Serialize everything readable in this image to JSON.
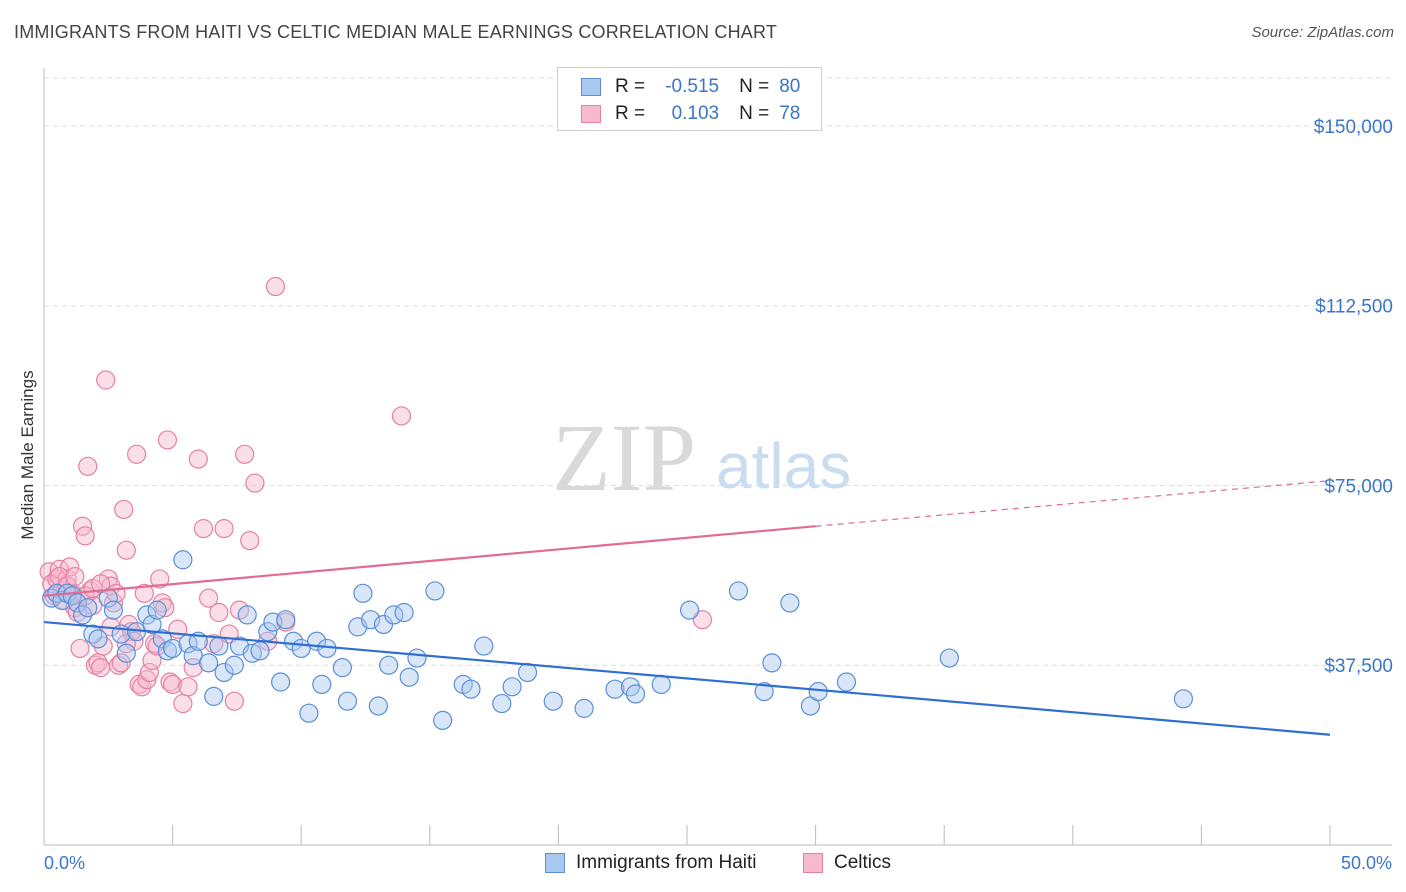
{
  "header": {
    "title": "IMMIGRANTS FROM HAITI VS CELTIC MEDIAN MALE EARNINGS CORRELATION CHART",
    "source": "Source: ZipAtlas.com"
  },
  "watermark": {
    "zip": "ZIP",
    "atlas": "atlas"
  },
  "legend": {
    "series1": {
      "r_label": "R =",
      "r_value": "-0.515",
      "n_label": "N =",
      "n_value": "80"
    },
    "series2": {
      "r_label": "R =",
      "r_value": "0.103",
      "n_label": "N =",
      "n_value": "78"
    }
  },
  "bottom_legend": {
    "series1": "Immigrants from Haiti",
    "series2": "Celtics"
  },
  "colors": {
    "blue_fill": "#a9c8f0",
    "blue_stroke": "#5b8fd6",
    "blue_line": "#2f6fd0",
    "pink_fill": "#f6b9cd",
    "pink_stroke": "#e57fa4",
    "pink_line": "#e06b94",
    "tick_text": "#3a76c8",
    "grid": "#dddddd"
  },
  "chart_data": {
    "type": "scatter",
    "title": "IMMIGRANTS FROM HAITI VS CELTIC MEDIAN MALE EARNINGS CORRELATION CHART",
    "xlabel": "",
    "ylabel": "Median Male Earnings",
    "xlim": [
      0,
      50
    ],
    "ylim": [
      0,
      160000
    ],
    "x_tick_labels": [
      "0.0%",
      "50.0%"
    ],
    "y_ticks": [
      37500,
      75000,
      112500,
      150000
    ],
    "y_tick_labels": [
      "$37,500",
      "$75,000",
      "$112,500",
      "$150,000"
    ],
    "grid": true,
    "series": [
      {
        "name": "Immigrants from Haiti",
        "trend": {
          "x": [
            0,
            50
          ],
          "y": [
            46500,
            23000
          ]
        },
        "points": [
          [
            0.3,
            51500
          ],
          [
            0.5,
            52500
          ],
          [
            0.7,
            51000
          ],
          [
            0.9,
            52500
          ],
          [
            1.1,
            52000
          ],
          [
            1.3,
            50500
          ],
          [
            1.5,
            48000
          ],
          [
            1.7,
            49500
          ],
          [
            1.9,
            44000
          ],
          [
            2.1,
            43000
          ],
          [
            2.5,
            51500
          ],
          [
            2.7,
            49000
          ],
          [
            3.0,
            44000
          ],
          [
            3.2,
            40000
          ],
          [
            3.6,
            44500
          ],
          [
            4.0,
            48000
          ],
          [
            4.2,
            46000
          ],
          [
            4.4,
            49000
          ],
          [
            4.6,
            43000
          ],
          [
            4.8,
            40500
          ],
          [
            5.0,
            41000
          ],
          [
            5.4,
            59500
          ],
          [
            5.6,
            42000
          ],
          [
            5.8,
            39500
          ],
          [
            6.0,
            42500
          ],
          [
            6.4,
            38000
          ],
          [
            6.6,
            31000
          ],
          [
            6.8,
            41500
          ],
          [
            7.0,
            36000
          ],
          [
            7.4,
            37500
          ],
          [
            7.6,
            41500
          ],
          [
            7.9,
            48000
          ],
          [
            8.1,
            40000
          ],
          [
            8.4,
            40500
          ],
          [
            8.7,
            44500
          ],
          [
            8.9,
            46500
          ],
          [
            9.2,
            34000
          ],
          [
            9.4,
            47000
          ],
          [
            9.7,
            42500
          ],
          [
            10.0,
            41000
          ],
          [
            10.3,
            27500
          ],
          [
            10.6,
            42500
          ],
          [
            10.8,
            33500
          ],
          [
            11.0,
            41000
          ],
          [
            11.6,
            37000
          ],
          [
            11.8,
            30000
          ],
          [
            12.2,
            45500
          ],
          [
            12.4,
            52500
          ],
          [
            12.7,
            47000
          ],
          [
            13.0,
            29000
          ],
          [
            13.2,
            46000
          ],
          [
            13.4,
            37500
          ],
          [
            13.6,
            48000
          ],
          [
            14.0,
            48500
          ],
          [
            14.2,
            35000
          ],
          [
            14.5,
            39000
          ],
          [
            15.2,
            53000
          ],
          [
            15.5,
            26000
          ],
          [
            16.3,
            33500
          ],
          [
            16.6,
            32500
          ],
          [
            17.1,
            41500
          ],
          [
            17.8,
            29500
          ],
          [
            18.2,
            33000
          ],
          [
            18.8,
            36000
          ],
          [
            19.8,
            30000
          ],
          [
            21.0,
            28500
          ],
          [
            22.2,
            32500
          ],
          [
            22.8,
            33000
          ],
          [
            23.0,
            31500
          ],
          [
            24.0,
            33500
          ],
          [
            25.1,
            49000
          ],
          [
            27.0,
            53000
          ],
          [
            28.0,
            32000
          ],
          [
            28.3,
            38000
          ],
          [
            29.0,
            50500
          ],
          [
            29.8,
            29000
          ],
          [
            30.1,
            32000
          ],
          [
            31.2,
            34000
          ],
          [
            35.2,
            39000
          ],
          [
            44.3,
            30500
          ]
        ]
      },
      {
        "name": "Celtics",
        "trend": {
          "x": [
            0,
            30
          ],
          "y": [
            52000,
            66500
          ]
        },
        "trend_dashed": {
          "x": [
            30,
            50
          ],
          "y": [
            66500,
            76000
          ]
        },
        "points": [
          [
            0.2,
            57000
          ],
          [
            0.3,
            54500
          ],
          [
            0.4,
            52000
          ],
          [
            0.5,
            55500
          ],
          [
            0.6,
            57500
          ],
          [
            0.7,
            53000
          ],
          [
            0.8,
            51000
          ],
          [
            0.9,
            55500
          ],
          [
            1.0,
            58000
          ],
          [
            1.1,
            52500
          ],
          [
            1.2,
            49500
          ],
          [
            1.3,
            48500
          ],
          [
            1.4,
            41000
          ],
          [
            1.5,
            66500
          ],
          [
            1.6,
            64500
          ],
          [
            1.7,
            79000
          ],
          [
            1.8,
            53000
          ],
          [
            1.9,
            50000
          ],
          [
            2.0,
            37500
          ],
          [
            2.1,
            38000
          ],
          [
            2.2,
            37000
          ],
          [
            2.3,
            41500
          ],
          [
            2.4,
            97000
          ],
          [
            2.5,
            55500
          ],
          [
            2.6,
            54000
          ],
          [
            2.7,
            50500
          ],
          [
            2.8,
            52500
          ],
          [
            2.9,
            37500
          ],
          [
            3.0,
            38000
          ],
          [
            3.1,
            70000
          ],
          [
            3.2,
            61500
          ],
          [
            3.3,
            46000
          ],
          [
            3.4,
            44500
          ],
          [
            3.5,
            42500
          ],
          [
            3.6,
            81500
          ],
          [
            3.7,
            33500
          ],
          [
            3.8,
            33000
          ],
          [
            3.9,
            52500
          ],
          [
            4.0,
            34500
          ],
          [
            4.1,
            36000
          ],
          [
            4.2,
            38500
          ],
          [
            4.3,
            42000
          ],
          [
            4.4,
            41500
          ],
          [
            4.5,
            55500
          ],
          [
            4.6,
            50500
          ],
          [
            4.7,
            49500
          ],
          [
            4.8,
            84500
          ],
          [
            4.9,
            34000
          ],
          [
            5.0,
            33500
          ],
          [
            5.2,
            45000
          ],
          [
            5.4,
            29500
          ],
          [
            5.6,
            33000
          ],
          [
            5.8,
            37000
          ],
          [
            6.0,
            80500
          ],
          [
            6.2,
            66000
          ],
          [
            6.4,
            51500
          ],
          [
            6.6,
            42000
          ],
          [
            6.8,
            48500
          ],
          [
            7.0,
            66000
          ],
          [
            7.2,
            44000
          ],
          [
            7.4,
            30000
          ],
          [
            7.6,
            49000
          ],
          [
            7.8,
            81500
          ],
          [
            8.0,
            63500
          ],
          [
            8.2,
            75500
          ],
          [
            8.7,
            42500
          ],
          [
            9.0,
            116500
          ],
          [
            9.4,
            46500
          ],
          [
            0.6,
            56000
          ],
          [
            0.9,
            54000
          ],
          [
            1.2,
            56000
          ],
          [
            1.6,
            52000
          ],
          [
            1.9,
            53500
          ],
          [
            2.2,
            54500
          ],
          [
            2.6,
            45500
          ],
          [
            3.2,
            42000
          ],
          [
            13.9,
            89500
          ],
          [
            25.6,
            47000
          ]
        ]
      }
    ]
  }
}
